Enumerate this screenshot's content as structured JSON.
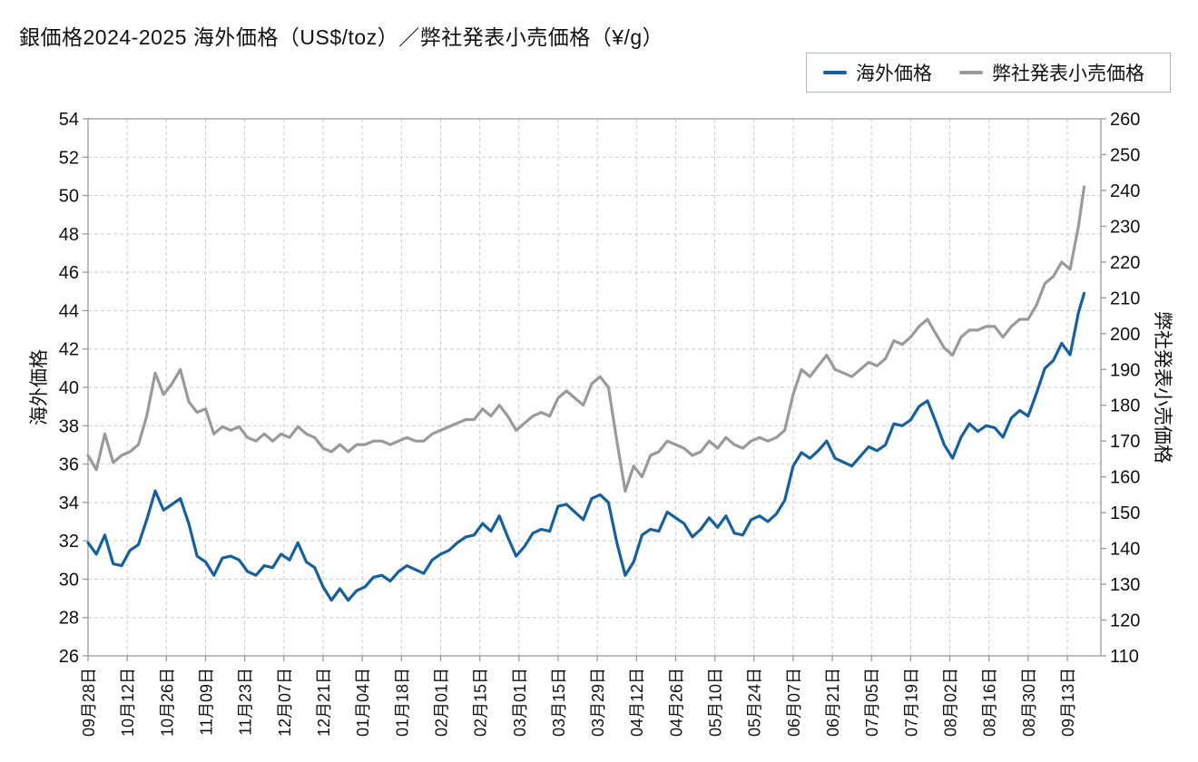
{
  "title": "銀価格2024-2025 海外価格（US$/toz）／弊社発表小売価格（¥/g）",
  "legend": {
    "items": [
      {
        "label": "海外価格",
        "color": "#16609e"
      },
      {
        "label": "弊社発表小売価格",
        "color": "#9a9a9a"
      }
    ]
  },
  "colors": {
    "overseas_line": "#16609e",
    "retail_line": "#9a9a9a",
    "grid": "#cdcdcd",
    "spine": "#9a9a9a",
    "text": "#111111",
    "background": "#ffffff"
  },
  "chart_data": {
    "type": "line",
    "title": "銀価格2024-2025 海外価格（US$/toz）／弊社発表小売価格（¥/g）",
    "grid": true,
    "legend_position": "top-right",
    "left_axis": {
      "label": "海外価格",
      "min": 26,
      "max": 54,
      "step": 2
    },
    "right_axis": {
      "label": "弊社発表小売価格",
      "min": 110,
      "max": 260,
      "step": 10
    },
    "x_tick_labels": [
      "09月28日",
      "10月12日",
      "10月26日",
      "11月09日",
      "11月23日",
      "12月07日",
      "12月21日",
      "01月04日",
      "01月18日",
      "02月01日",
      "02月15日",
      "03月01日",
      "03月15日",
      "03月29日",
      "04月12日",
      "04月26日",
      "05月10日",
      "05月24日",
      "06月07日",
      "06月21日",
      "07月05日",
      "07月19日",
      "08月02日",
      "08月16日",
      "08月30日",
      "09月13日"
    ],
    "x_tick_interval_days": 14,
    "days": [
      0,
      3,
      6,
      9,
      12,
      15,
      18,
      21,
      24,
      27,
      30,
      33,
      36,
      39,
      42,
      45,
      48,
      51,
      54,
      57,
      60,
      63,
      66,
      69,
      72,
      75,
      78,
      81,
      84,
      87,
      90,
      93,
      96,
      99,
      102,
      105,
      108,
      111,
      114,
      117,
      120,
      123,
      126,
      129,
      132,
      135,
      138,
      141,
      144,
      147,
      150,
      153,
      156,
      159,
      162,
      165,
      168,
      171,
      174,
      177,
      180,
      183,
      186,
      189,
      192,
      195,
      198,
      201,
      204,
      207,
      210,
      213,
      216,
      219,
      222,
      225,
      228,
      231,
      234,
      237,
      240,
      243,
      246,
      249,
      252,
      255,
      258,
      261,
      264,
      267,
      270,
      273,
      276,
      279,
      282,
      285,
      288,
      291,
      294,
      297,
      300,
      303,
      306,
      309,
      312,
      315,
      318,
      321,
      324,
      327,
      330,
      333,
      336,
      339,
      342,
      345,
      348,
      351,
      354,
      356
    ],
    "series": [
      {
        "name": "海外価格",
        "axis": "left",
        "unit": "US$/toz",
        "color": "#16609e",
        "values": [
          31.9,
          31.3,
          32.3,
          30.8,
          30.7,
          31.5,
          31.8,
          33.1,
          34.6,
          33.6,
          33.9,
          34.2,
          32.9,
          31.2,
          30.9,
          30.2,
          31.1,
          31.2,
          31.0,
          30.4,
          30.2,
          30.7,
          30.6,
          31.3,
          31.0,
          31.9,
          30.9,
          30.6,
          29.6,
          28.9,
          29.5,
          28.9,
          29.4,
          29.6,
          30.1,
          30.2,
          29.9,
          30.4,
          30.7,
          30.5,
          30.3,
          31.0,
          31.3,
          31.5,
          31.9,
          32.2,
          32.3,
          32.9,
          32.5,
          33.3,
          32.2,
          31.2,
          31.7,
          32.4,
          32.6,
          32.5,
          33.8,
          33.9,
          33.5,
          33.1,
          34.2,
          34.4,
          34.0,
          31.9,
          30.2,
          30.9,
          32.3,
          32.6,
          32.5,
          33.5,
          33.2,
          32.9,
          32.2,
          32.6,
          33.2,
          32.7,
          33.3,
          32.4,
          32.3,
          33.1,
          33.3,
          33.0,
          33.4,
          34.1,
          35.9,
          36.6,
          36.3,
          36.7,
          37.2,
          36.3,
          36.1,
          35.9,
          36.4,
          36.9,
          36.7,
          37.0,
          38.1,
          38.0,
          38.3,
          39.0,
          39.3,
          38.2,
          37.0,
          36.3,
          37.4,
          38.1,
          37.7,
          38.0,
          37.9,
          37.4,
          38.4,
          38.8,
          38.5,
          39.7,
          41.0,
          41.4,
          42.3,
          41.7,
          43.9,
          44.9
        ]
      },
      {
        "name": "弊社発表小売価格",
        "axis": "right",
        "unit": "¥/g",
        "color": "#9a9a9a",
        "values": [
          166,
          162,
          172,
          164,
          166,
          167,
          169,
          177,
          189,
          183,
          186,
          190,
          181,
          178,
          179,
          172,
          174,
          173,
          174,
          171,
          170,
          172,
          170,
          172,
          171,
          174,
          172,
          171,
          168,
          167,
          169,
          167,
          169,
          169,
          170,
          170,
          169,
          170,
          171,
          170,
          170,
          172,
          173,
          174,
          175,
          176,
          176,
          179,
          177,
          180,
          177,
          173,
          175,
          177,
          178,
          177,
          182,
          184,
          182,
          180,
          186,
          188,
          185,
          170,
          156,
          163,
          160,
          166,
          167,
          170,
          169,
          168,
          166,
          167,
          170,
          168,
          171,
          169,
          168,
          170,
          171,
          170,
          171,
          173,
          183,
          190,
          188,
          191,
          194,
          190,
          189,
          188,
          190,
          192,
          191,
          193,
          198,
          197,
          199,
          202,
          204,
          200,
          196,
          194,
          199,
          201,
          201,
          202,
          202,
          199,
          202,
          204,
          204,
          208,
          214,
          216,
          220,
          218,
          230,
          241
        ]
      }
    ]
  }
}
